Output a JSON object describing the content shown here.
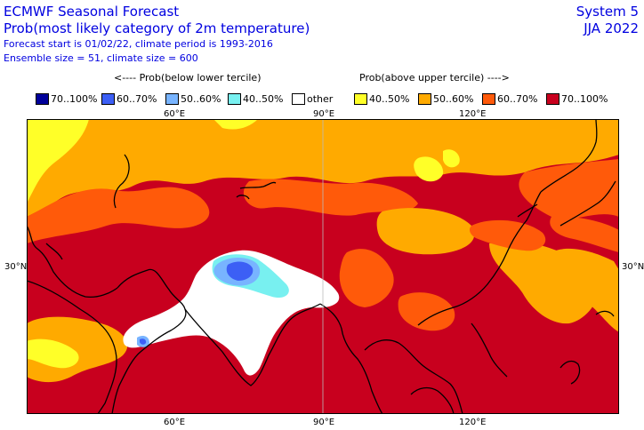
{
  "header": {
    "title": "ECMWF Seasonal Forecast",
    "subtitle": "Prob(most likely category of 2m temperature)",
    "forecast_info": "Forecast start is 01/02/22, climate period is 1993-2016",
    "ensemble_info": "Ensemble size = 51, climate size = 600",
    "system": "System 5",
    "season": "JJA 2022"
  },
  "legend": {
    "below_heading": "<---- Prob(below lower tercile)",
    "above_heading": "Prob(above upper tercile) ---->",
    "items": [
      {
        "label": "70..100%",
        "color": "#00009a"
      },
      {
        "label": "60..70%",
        "color": "#3c5ff5"
      },
      {
        "label": "50..60%",
        "color": "#78b4ff"
      },
      {
        "label": "40..50%",
        "color": "#78f0f0"
      },
      {
        "label": "other",
        "color": "#ffffff"
      },
      {
        "label": "40..50%",
        "color": "#ffff28"
      },
      {
        "label": "50..60%",
        "color": "#ffaa00"
      },
      {
        "label": "60..70%",
        "color": "#ff5a0a"
      },
      {
        "label": "70..100%",
        "color": "#c8001e"
      }
    ]
  },
  "axes": {
    "lon_labels": [
      "60°E",
      "90°E",
      "120°E"
    ],
    "lat_labels": [
      "30°N"
    ]
  }
}
